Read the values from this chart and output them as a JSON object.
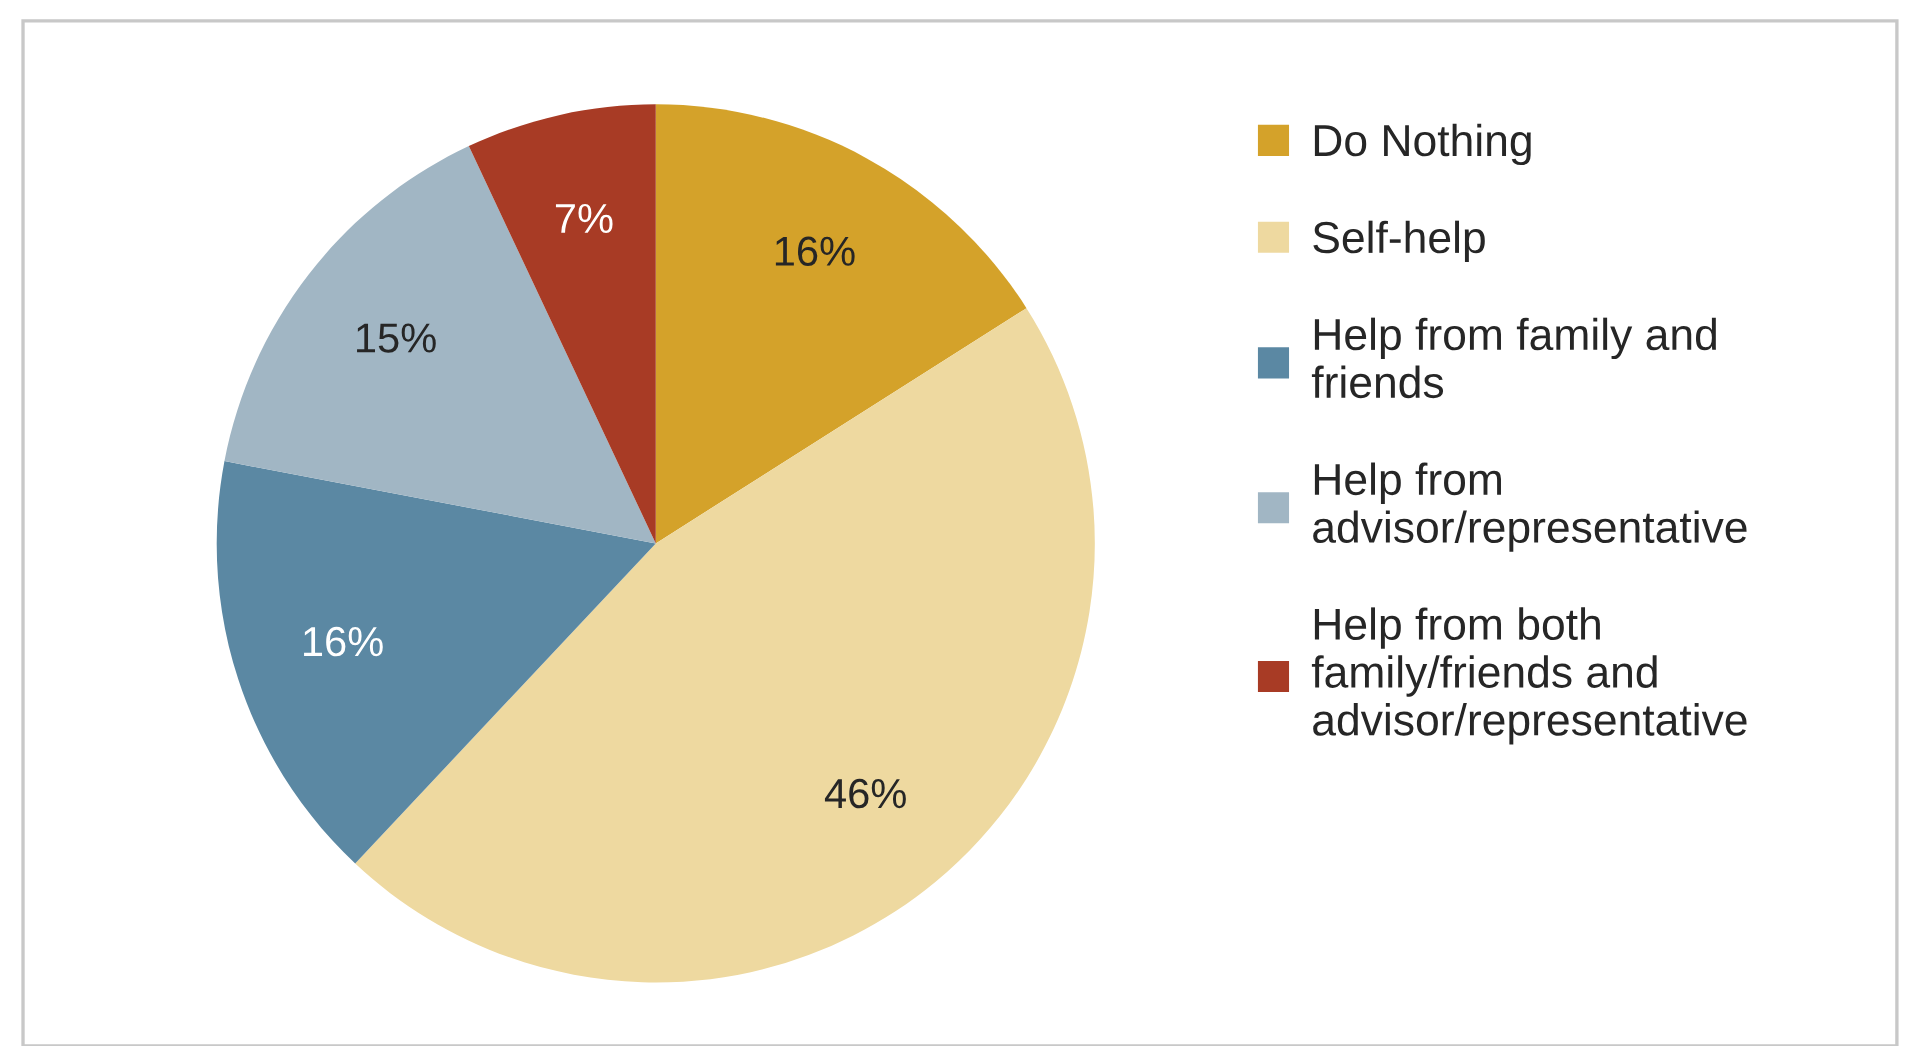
{
  "chart_data": {
    "type": "pie",
    "categories": [
      "Do Nothing",
      "Self-help",
      "Help from family and\nfriends",
      "Help from\nadvisor/representative",
      "Help from both\nfamily/friends and\nadvisor/representative"
    ],
    "values": [
      16,
      46,
      16,
      15,
      7
    ],
    "value_labels": [
      "16%",
      "46%",
      "16%",
      "15%",
      "7%"
    ],
    "colors": [
      "#d4a22a",
      "#eed9a0",
      "#5b88a3",
      "#a1b6c4",
      "#a83b25"
    ],
    "legend": "right"
  }
}
